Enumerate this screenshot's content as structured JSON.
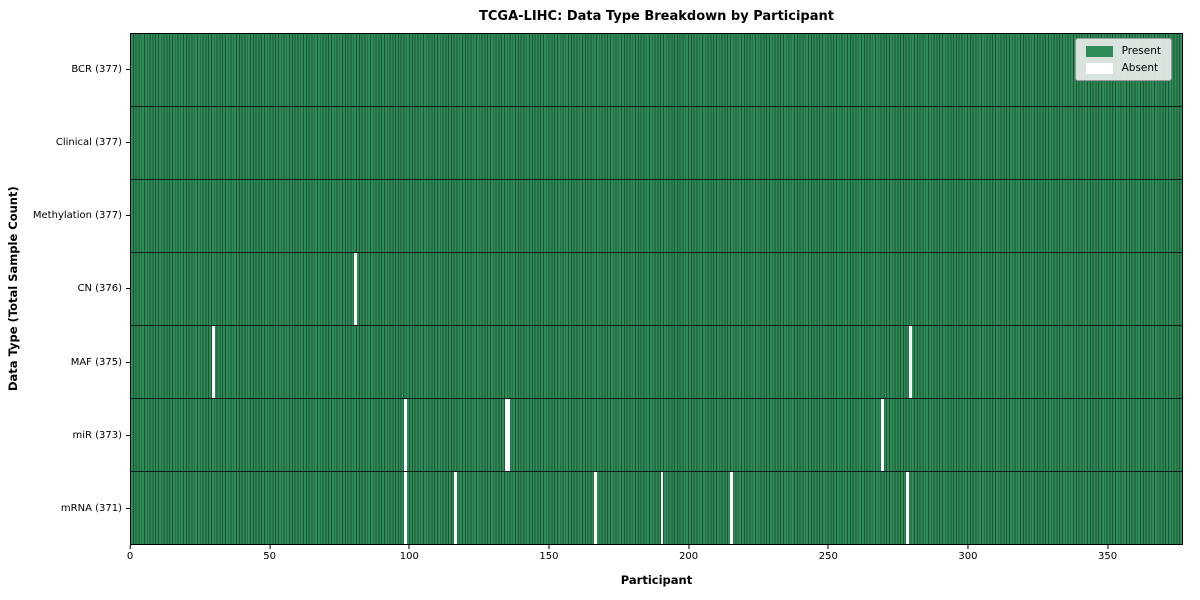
{
  "chart_data": {
    "type": "heatmap",
    "title": "TCGA-LIHC: Data Type Breakdown by Participant",
    "xlabel": "Participant",
    "ylabel": "Data Type (Total Sample Count)",
    "x_min": 0,
    "x_max": 377,
    "x_ticks": [
      0,
      50,
      100,
      150,
      200,
      250,
      300,
      350
    ],
    "n_participants": 377,
    "grid": false,
    "legend_position": "upper right",
    "colors": {
      "present": "#2e8b57",
      "present_edge": "#1c5434",
      "absent": "#ffffff",
      "row_separator": "#101f16",
      "legend_bg": "#e9ede9"
    },
    "legend": [
      {
        "label": "Present",
        "color": "#2e8b57"
      },
      {
        "label": "Absent",
        "color": "#ffffff"
      }
    ],
    "rows": [
      {
        "key": "bcr",
        "name": "BCR",
        "count": 377,
        "label": "BCR (377)",
        "absent": []
      },
      {
        "key": "clinical",
        "name": "Clinical",
        "count": 377,
        "label": "Clinical (377)",
        "absent": []
      },
      {
        "key": "methylation",
        "name": "Methylation",
        "count": 377,
        "label": "Methylation (377)",
        "absent": []
      },
      {
        "key": "cn",
        "name": "CN",
        "count": 376,
        "label": "CN (376)",
        "absent": [
          80
        ]
      },
      {
        "key": "maf",
        "name": "MAF",
        "count": 375,
        "label": "MAF (375)",
        "absent": [
          29,
          279
        ]
      },
      {
        "key": "mir",
        "name": "miR",
        "count": 373,
        "label": "miR (373)",
        "absent": [
          98,
          134,
          135,
          269
        ]
      },
      {
        "key": "mrna",
        "name": "mRNA",
        "count": 371,
        "label": "mRNA (371)",
        "absent": [
          98,
          116,
          166,
          190,
          215,
          278
        ]
      }
    ]
  }
}
